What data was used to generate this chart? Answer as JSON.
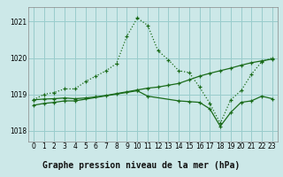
{
  "bg_color": "#cce8e8",
  "grid_color": "#99cccc",
  "line_color": "#1a6b1a",
  "title": "Graphe pression niveau de la mer (hPa)",
  "xlim": [
    -0.5,
    23.5
  ],
  "ylim": [
    1017.7,
    1021.4
  ],
  "yticks": [
    1018,
    1019,
    1020,
    1021
  ],
  "xticks": [
    0,
    1,
    2,
    3,
    4,
    5,
    6,
    7,
    8,
    9,
    10,
    11,
    12,
    13,
    14,
    15,
    16,
    17,
    18,
    19,
    20,
    21,
    22,
    23
  ],
  "series1_x": [
    0,
    1,
    2,
    3,
    4,
    5,
    6,
    7,
    8,
    9,
    10,
    11,
    12,
    13,
    14,
    15,
    16,
    17,
    18,
    19,
    20,
    21,
    22,
    23
  ],
  "series1_y": [
    1018.85,
    1019.0,
    1019.05,
    1019.15,
    1019.15,
    1019.35,
    1019.5,
    1019.65,
    1019.85,
    1020.6,
    1021.1,
    1020.9,
    1020.2,
    1019.95,
    1019.65,
    1019.6,
    1019.2,
    1018.75,
    1018.2,
    1018.85,
    1019.1,
    1019.55,
    1019.9,
    1020.0
  ],
  "series2_x": [
    0,
    1,
    2,
    3,
    4,
    5,
    6,
    7,
    8,
    9,
    10,
    11,
    12,
    13,
    14,
    15,
    16,
    17,
    18,
    19,
    20,
    21,
    22,
    23
  ],
  "series2_y": [
    1018.85,
    1018.87,
    1018.88,
    1018.9,
    1018.88,
    1018.9,
    1018.93,
    1018.97,
    1019.02,
    1019.07,
    1019.12,
    1019.17,
    1019.2,
    1019.25,
    1019.3,
    1019.4,
    1019.5,
    1019.58,
    1019.65,
    1019.72,
    1019.8,
    1019.87,
    1019.92,
    1019.97
  ],
  "series3_x": [
    0,
    1,
    2,
    3,
    4,
    10,
    11,
    14,
    15,
    16,
    17,
    18,
    19,
    20,
    21,
    22,
    23
  ],
  "series3_y": [
    1018.7,
    1018.75,
    1018.78,
    1018.82,
    1018.82,
    1019.1,
    1018.95,
    1018.82,
    1018.8,
    1018.78,
    1018.6,
    1018.12,
    1018.5,
    1018.78,
    1018.82,
    1018.95,
    1018.88
  ]
}
